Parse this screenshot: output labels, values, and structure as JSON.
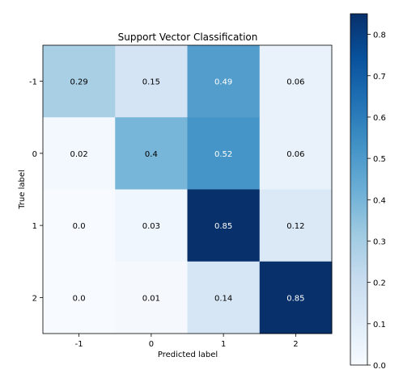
{
  "chart_data": {
    "type": "heatmap",
    "title": "Support Vector Classification",
    "xlabel": "Predicted label",
    "ylabel": "True label",
    "x_categories": [
      "-1",
      "0",
      "1",
      "2"
    ],
    "y_categories": [
      "-1",
      "0",
      "1",
      "2"
    ],
    "values": [
      [
        0.29,
        0.15,
        0.49,
        0.06
      ],
      [
        0.02,
        0.4,
        0.52,
        0.06
      ],
      [
        0.0,
        0.03,
        0.85,
        0.12
      ],
      [
        0.0,
        0.01,
        0.14,
        0.85
      ]
    ],
    "cell_labels": [
      [
        "0.29",
        "0.15",
        "0.49",
        "0.06"
      ],
      [
        "0.02",
        "0.4",
        "0.52",
        "0.06"
      ],
      [
        "0.0",
        "0.03",
        "0.85",
        "0.12"
      ],
      [
        "0.0",
        "0.01",
        "0.14",
        "0.85"
      ]
    ],
    "colormap": "Blues",
    "vmin": 0.0,
    "vmax": 0.85,
    "colorbar": {
      "ticks": [
        "0.0",
        "0.1",
        "0.2",
        "0.3",
        "0.4",
        "0.5",
        "0.6",
        "0.7",
        "0.8"
      ],
      "tick_values": [
        0.0,
        0.1,
        0.2,
        0.3,
        0.4,
        0.5,
        0.6,
        0.7,
        0.8
      ],
      "placement": "right"
    },
    "grid": false
  }
}
